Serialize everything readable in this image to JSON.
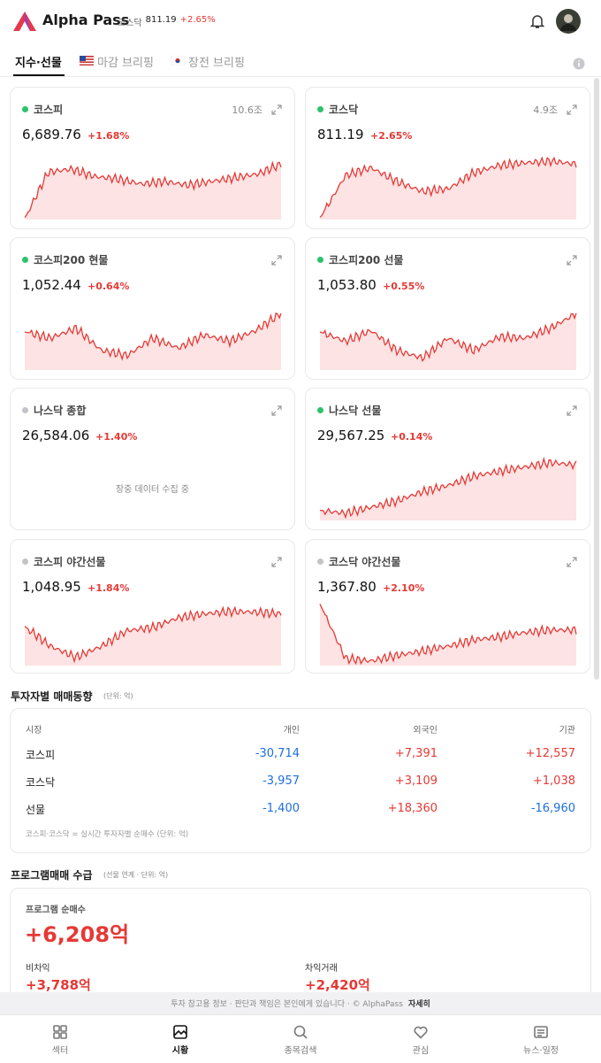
{
  "header": {
    "brand": "Alpha Pass",
    "ticker_name": "코스닥",
    "ticker_value": "811.19",
    "ticker_change": "+2.65%"
  },
  "tabs": [
    "지수·선물",
    "마감 브리핑",
    "장전 브리핑"
  ],
  "cards": [
    {
      "name": "코스피",
      "meta": "10.6조",
      "value": "6,689.76",
      "change": "+1.68%"
    },
    {
      "name": "코스닥",
      "meta": "4.9조",
      "value": "811.19",
      "change": "+2.65%"
    },
    {
      "name": "코스피200 현물",
      "value": "1,052.44",
      "change": "+0.64%"
    },
    {
      "name": "코스피200 선물",
      "value": "1,053.80",
      "change": "+0.55%"
    },
    {
      "name": "나스닥 종합",
      "value": "26,584.06",
      "change": "+1.40%",
      "note": "장중 데이터 수집 중"
    },
    {
      "name": "나스닥 선물",
      "value": "29,567.25",
      "change": "+0.14%"
    },
    {
      "name": "코스피 야간선물",
      "value": "1,048.95",
      "change": "+1.84%"
    },
    {
      "name": "코스닥 야간선물",
      "value": "1,367.80",
      "change": "+2.10%"
    }
  ],
  "investor": {
    "title": "투자자별 매매동향",
    "unit": "(단위: 억)",
    "columns": [
      "시장",
      "개인",
      "외국인",
      "기관"
    ],
    "rows": [
      [
        "코스피",
        "-30,714",
        "+7,391",
        "+12,557"
      ],
      [
        "코스닥",
        "-3,957",
        "+3,109",
        "+1,038"
      ],
      [
        "선물",
        "-1,400",
        "+18,360",
        "-16,960"
      ]
    ],
    "note": "코스피·코스닥 = 실시간 투자자별 순매수 (단위: 억)"
  },
  "program": {
    "title": "프로그램매매 수급",
    "unit": "(선물 연계 · 단위: 억)",
    "net_label": "프로그램 순매수",
    "net_value": "+6,208억",
    "items": [
      {
        "label": "비차익",
        "value": "+3,788억"
      },
      {
        "label": "차익거래",
        "value": "+2,420억"
      }
    ]
  },
  "footer": {
    "text": "투자 참고용 정보 · 판단과 책임은 본인에게 있습니다 · © AlphaPass",
    "link": "자세히"
  },
  "nav": [
    "섹터",
    "시황",
    "종목검색",
    "관심",
    "뉴스·일정"
  ]
}
